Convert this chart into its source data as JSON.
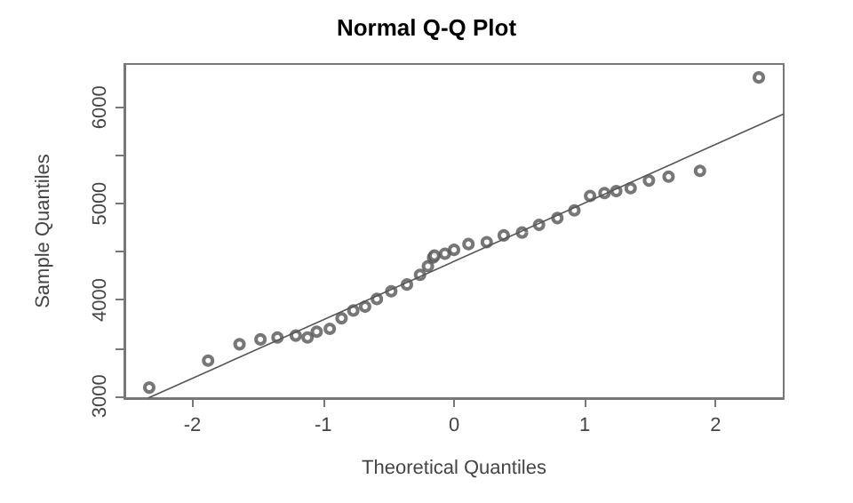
{
  "chart_data": {
    "type": "scatter",
    "title": "Normal Q-Q Plot",
    "xlabel": "Theoretical Quantiles",
    "ylabel": "Sample Quantiles",
    "marker": "circle",
    "grid": false,
    "xlim": [
      -2.52,
      2.52
    ],
    "ylim": [
      2980,
      6450
    ],
    "xticks": [
      -2,
      -1,
      0,
      1,
      2
    ],
    "yticks": [
      3000,
      {
        "value": 3500,
        "label": null
      },
      4000,
      {
        "value": 4500,
        "label": null
      },
      5000,
      {
        "value": 5500,
        "label": null
      },
      6000
    ],
    "series": [
      {
        "color": "#555555",
        "x": [
          -2.33,
          -1.88,
          -1.64,
          -1.48,
          -1.35,
          -1.21,
          -1.12,
          -1.05,
          -0.95,
          -0.86,
          -0.77,
          -0.68,
          -0.59,
          -0.48,
          -0.36,
          -0.26,
          -0.2,
          -0.16,
          -0.15,
          -0.07,
          0,
          0.11,
          0.25,
          0.38,
          0.52,
          0.65,
          0.79,
          0.92,
          1.04,
          1.15,
          1.24,
          1.35,
          1.49,
          1.64,
          1.88,
          2.33
        ],
        "values": [
          3090,
          3370,
          3540,
          3590,
          3610,
          3630,
          3610,
          3670,
          3700,
          3810,
          3890,
          3930,
          4010,
          4090,
          4160,
          4260,
          4350,
          4440,
          4460,
          4480,
          4520,
          4580,
          4600,
          4670,
          4700,
          4780,
          4850,
          4930,
          5080,
          5110,
          5130,
          5160,
          5240,
          5280,
          5340,
          6310
        ]
      },
      {
        "type": "line",
        "color": "#555555",
        "marker": "none",
        "x": [
          -2.34,
          2.52
        ],
        "values": [
          2980,
          5930
        ]
      }
    ]
  }
}
